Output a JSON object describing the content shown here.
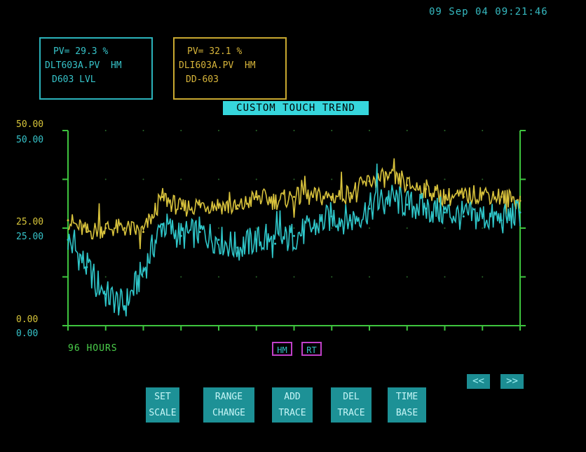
{
  "timestamp": "09 Sep 04 09:21:46",
  "traces": [
    {
      "pv": "PV= 29.3 %",
      "tag": "DLT603A.PV",
      "mode": "HM",
      "desc": "D603 LVL",
      "color": "#36c3c9"
    },
    {
      "pv": "PV= 32.1 %",
      "tag": "DLI603A.PV",
      "mode": "HM",
      "desc": "DD-603",
      "color": "#d6b43a"
    }
  ],
  "title": "CUSTOM TOUCH TREND",
  "axis_labels": {
    "trace2_top": "50.00",
    "trace1_top": "50.00",
    "trace2_mid": "25.00",
    "trace1_mid": "25.00",
    "trace2_bottom": "0.00",
    "trace1_bottom": "0.00"
  },
  "time_span": "96 HOURS",
  "tags": {
    "hm": "HM",
    "rt": "RT"
  },
  "nav": {
    "prev": "<<",
    "next": ">>"
  },
  "buttons": [
    {
      "line1": "SET",
      "line2": "SCALE"
    },
    {
      "line1": "RANGE",
      "line2": "CHANGE"
    },
    {
      "line1": "ADD",
      "line2": "TRACE"
    },
    {
      "line1": "DEL",
      "line2": "TRACE"
    },
    {
      "line1": "TIME",
      "line2": "BASE"
    }
  ],
  "colors": {
    "grid": "#3ec43e",
    "trace1": "#2fc6c9",
    "trace2": "#d8c23c",
    "background": "#000000"
  },
  "chart_data": {
    "type": "line",
    "title": "CUSTOM TOUCH TREND",
    "xlabel": "96 HOURS",
    "ylabel": "",
    "ylim": [
      0,
      50
    ],
    "x": [
      0,
      4,
      8,
      12,
      16,
      20,
      24,
      28,
      32,
      36,
      40,
      44,
      48,
      52,
      56,
      60,
      64,
      68,
      72,
      76,
      80,
      84,
      88,
      92,
      96
    ],
    "series": [
      {
        "name": "DLT603A.PV",
        "color": "#2fc6c9",
        "values": [
          22,
          15,
          8,
          5,
          14,
          26,
          23,
          24,
          22,
          20,
          22,
          21,
          23,
          25,
          28,
          27,
          30,
          33,
          31,
          30,
          29,
          28,
          28,
          27,
          29
        ]
      },
      {
        "name": "DLI603A.PV",
        "color": "#d8c23c",
        "values": [
          27,
          24,
          25,
          25,
          24,
          33,
          30,
          31,
          31,
          30,
          33,
          32,
          33,
          33,
          33,
          34,
          37,
          38,
          36,
          35,
          33,
          33,
          34,
          33,
          32
        ]
      }
    ]
  }
}
